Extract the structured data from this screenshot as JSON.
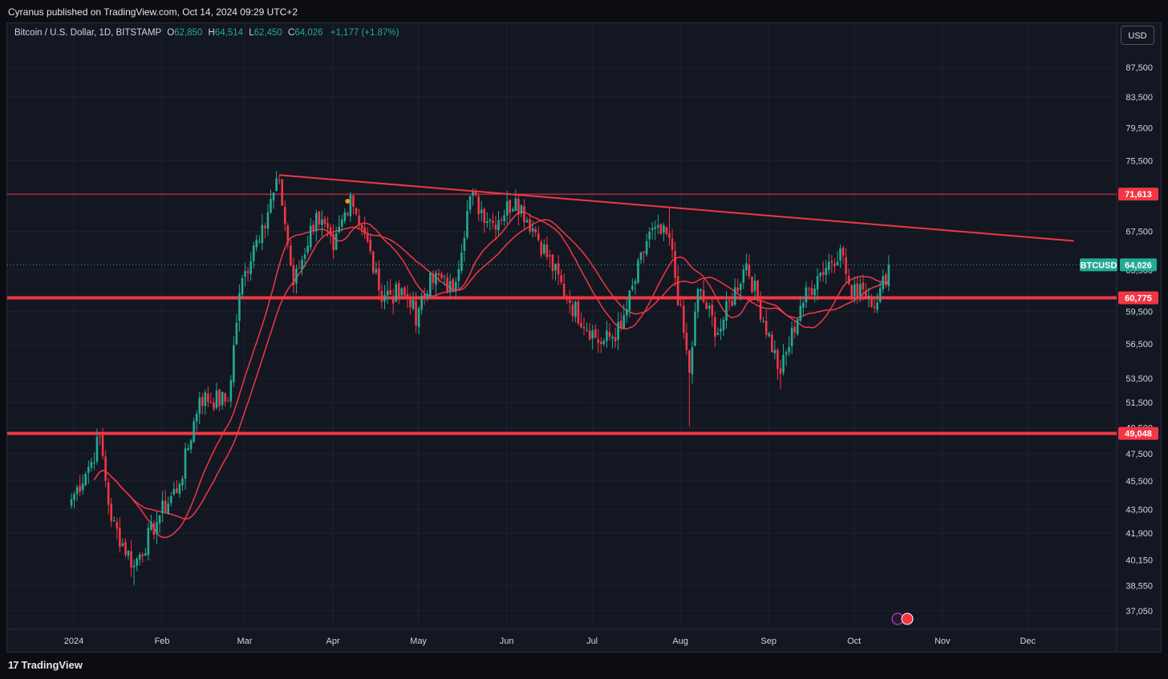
{
  "header": {
    "publisher": "Cyranus published on TradingView.com, Oct 14, 2024 09:29 UTC+2"
  },
  "legend": {
    "symbol": "Bitcoin / U.S. Dollar, 1D, BITSTAMP",
    "o_label": "O",
    "o": "62,850",
    "h_label": "H",
    "h": "64,514",
    "l_label": "L",
    "l": "62,450",
    "c_label": "C",
    "c": "64,026",
    "change": "+1,177 (+1.87%)"
  },
  "currency_button": "USD",
  "footer": {
    "brand": "TradingView",
    "logo": "17"
  },
  "colors": {
    "up": "#22ab94",
    "down": "#f23645",
    "line": "#f23645",
    "bg": "#131722",
    "grid": "#1e222d",
    "marker": "#ff9800"
  },
  "chart_data": {
    "type": "candlestick",
    "symbol": "BTCUSD",
    "price_axis": {
      "scale": "log",
      "labels": [
        "87,500",
        "83,500",
        "79,500",
        "75,500",
        "71,500",
        "67,500",
        "63,500",
        "59,500",
        "56,500",
        "53,500",
        "51,500",
        "49,500",
        "47,500",
        "45,500",
        "43,500",
        "41,900",
        "40,150",
        "38,550",
        "37,050"
      ]
    },
    "time_axis": {
      "labels": [
        "2024",
        "Feb",
        "Mar",
        "Apr",
        "May",
        "Jun",
        "Jul",
        "Aug",
        "Sep",
        "Oct",
        "Nov",
        "Dec"
      ]
    },
    "horizontal_levels": [
      {
        "price": 71613,
        "label": "71,613",
        "weight": "thin"
      },
      {
        "price": 60775,
        "label": "60,775",
        "weight": "thick"
      },
      {
        "price": 49048,
        "label": "49,048",
        "weight": "thick"
      }
    ],
    "last_price": {
      "price": 64026,
      "label": "64,026",
      "tag": "BTCUSD"
    },
    "trendline": {
      "from": {
        "date": "2024-03-14",
        "price": 73800
      },
      "to": {
        "date": "2024-12-18",
        "price": 66500
      }
    },
    "anchors": [
      [
        "2024-01-01",
        44200
      ],
      [
        "2024-01-08",
        46900
      ],
      [
        "2024-01-11",
        48800
      ],
      [
        "2024-01-15",
        42700
      ],
      [
        "2024-01-23",
        39800
      ],
      [
        "2024-02-01",
        43100
      ],
      [
        "2024-02-08",
        45300
      ],
      [
        "2024-02-15",
        51900
      ],
      [
        "2024-02-25",
        51600
      ],
      [
        "2024-02-29",
        61200
      ],
      [
        "2024-03-05",
        66000
      ],
      [
        "2024-03-08",
        68200
      ],
      [
        "2024-03-14",
        73100
      ],
      [
        "2024-03-19",
        62000
      ],
      [
        "2024-03-27",
        69500
      ],
      [
        "2024-04-02",
        65500
      ],
      [
        "2024-04-08",
        71500
      ],
      [
        "2024-04-13",
        67200
      ],
      [
        "2024-04-18",
        61500
      ],
      [
        "2024-04-30",
        60600
      ],
      [
        "2024-05-01",
        58200
      ],
      [
        "2024-05-06",
        63200
      ],
      [
        "2024-05-14",
        61500
      ],
      [
        "2024-05-20",
        71400
      ],
      [
        "2024-05-28",
        68400
      ],
      [
        "2024-06-05",
        71100
      ],
      [
        "2024-06-12",
        67400
      ],
      [
        "2024-06-24",
        60300
      ],
      [
        "2024-07-05",
        56500
      ],
      [
        "2024-07-12",
        57900
      ],
      [
        "2024-07-22",
        67500
      ],
      [
        "2024-07-29",
        66800
      ],
      [
        "2024-08-05",
        54000
      ],
      [
        "2024-08-08",
        61600
      ],
      [
        "2024-08-15",
        57500
      ],
      [
        "2024-08-25",
        64200
      ],
      [
        "2024-09-06",
        53900
      ],
      [
        "2024-09-13",
        60000
      ],
      [
        "2024-09-19",
        62900
      ],
      [
        "2024-09-27",
        65700
      ],
      [
        "2024-10-01",
        60800
      ],
      [
        "2024-10-04",
        62100
      ],
      [
        "2024-10-10",
        60300
      ],
      [
        "2024-10-14",
        64026
      ]
    ],
    "moving_averages": [
      {
        "name": "MA fast",
        "period": 20
      },
      {
        "name": "MA slow",
        "period": 30
      }
    ]
  }
}
